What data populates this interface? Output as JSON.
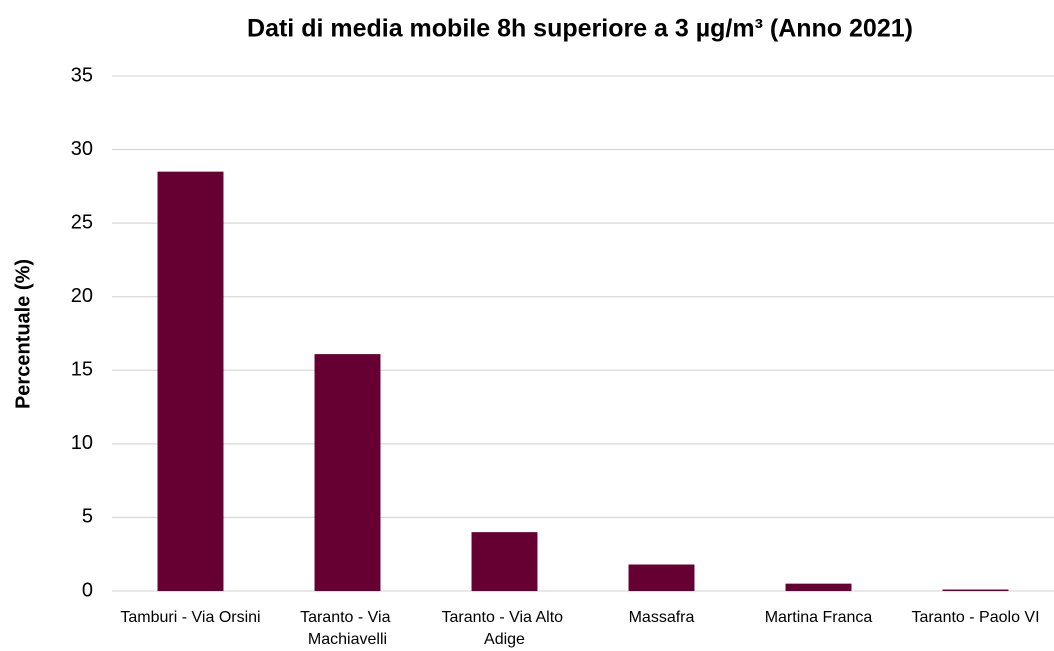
{
  "chart_data": {
    "type": "bar",
    "title": "Dati di media mobile 8h superiore a 3 µg/m³ (Anno 2021)",
    "y_label": "Percentuale (%)",
    "categories": [
      "Tamburi - Via Orsini",
      "Taranto - Via Machiavelli",
      "Taranto - Via Alto Adige",
      "Massafra",
      "Martina Franca",
      "Taranto - Paolo VI"
    ],
    "values": [
      28.5,
      16.1,
      4.0,
      1.8,
      0.5,
      0.1
    ],
    "color": "#660033",
    "ylim": [
      0,
      35
    ],
    "yticks": [
      0,
      5,
      10,
      15,
      20,
      25,
      30,
      35
    ],
    "grid": true
  }
}
